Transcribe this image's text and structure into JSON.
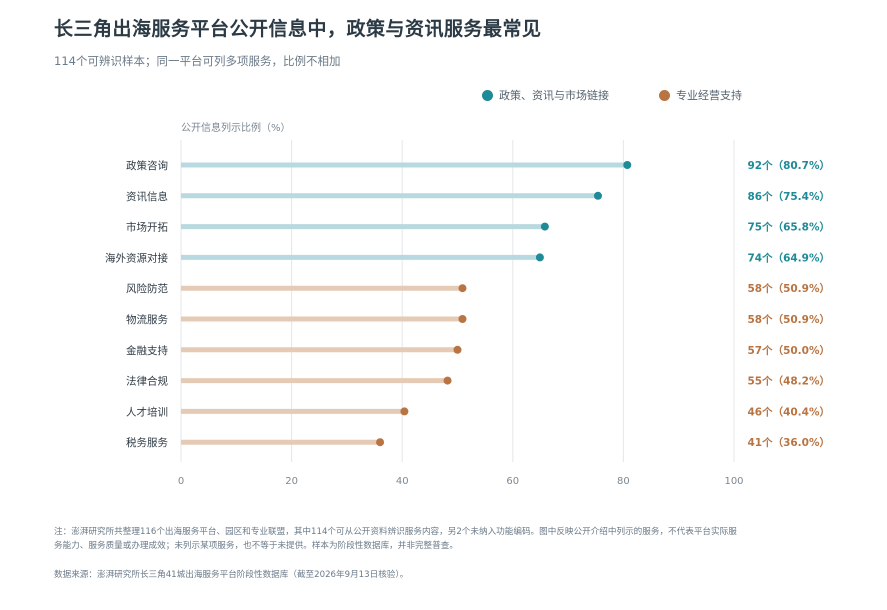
{
  "title": "长三角出海服务平台公开信息中，政策与资讯服务最常见",
  "subtitle": "114个可辨识样本；同一平台可列多项服务，比例不相加",
  "legend": [
    {
      "label": "政策、资讯与市场链接",
      "color": "#1f8a98"
    },
    {
      "label": "专业经营支持",
      "color": "#b97443"
    }
  ],
  "chart_data": {
    "type": "lollipop",
    "xlabel": "公开信息列示比例（%）",
    "xlim": [
      0,
      100
    ],
    "xticks": [
      0,
      20,
      40,
      60,
      80,
      100
    ],
    "grid": true,
    "legend_position": "top-right",
    "categories": [
      "政策咨询",
      "资讯信息",
      "市场开拓",
      "海外资源对接",
      "风险防范",
      "物流服务",
      "金融支持",
      "法律合规",
      "人才培训",
      "税务服务"
    ],
    "values": [
      80.7,
      75.4,
      65.8,
      64.9,
      50.9,
      50.9,
      50.0,
      48.2,
      40.4,
      36.0
    ],
    "groups": [
      0,
      0,
      0,
      0,
      1,
      1,
      1,
      1,
      1,
      1
    ],
    "value_labels": [
      "92个（80.7%）",
      "86个（75.4%）",
      "75个（65.8%）",
      "74个（64.9%）",
      "58个（50.9%）",
      "58个（50.9%）",
      "57个（50.0%）",
      "55个（48.2%）",
      "46个（40.4%）",
      "41个（36.0%）"
    ],
    "colors": {
      "group0_line": "#b8d9df",
      "group0_dot": "#1f8a98",
      "group1_line": "#e5cbb5",
      "group1_dot": "#b97443"
    }
  },
  "footer": {
    "note": "注：澎湃研究所共整理116个出海服务平台、园区和专业联盟，其中114个可从公开资料辨识服务内容，另2个未纳入功能编码。图中反映公开介绍中列示的服务，不代表平台实际服务能力、服务质量或办理成效；未列示某项服务，也不等于未提供。样本为阶段性数据库，并非完整普查。",
    "source": "数据来源：澎湃研究所长三角41城出海服务平台阶段性数据库（截至2026年9月13日核验）。"
  }
}
